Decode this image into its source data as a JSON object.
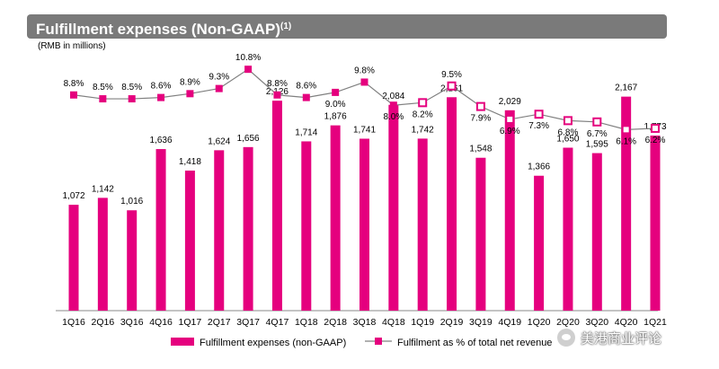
{
  "header": {
    "title": "Fulfillment expenses (Non-GAAP)",
    "title_sup": "(1)",
    "units": "(RMB in millions)"
  },
  "watermark": {
    "text": "美港商业评论",
    "icon": "wechat-icon"
  },
  "colors": {
    "bar": "#e5007e",
    "line": "#808080",
    "marker": "#e5007e",
    "title_bg": "#7a7a7a"
  },
  "chart_data": {
    "type": "bar",
    "categories": [
      "1Q16",
      "2Q16",
      "3Q16",
      "4Q16",
      "1Q17",
      "2Q17",
      "3Q17",
      "4Q17",
      "1Q18",
      "2Q18",
      "3Q18",
      "4Q18",
      "1Q19",
      "2Q19",
      "3Q19",
      "4Q19",
      "1Q20",
      "2Q20",
      "3Q20",
      "4Q20",
      "1Q21"
    ],
    "series": [
      {
        "name": "Fulfillment expenses (non-GAAP)",
        "kind": "bar",
        "values": [
          1072,
          1142,
          1016,
          1636,
          1418,
          1624,
          1656,
          2126,
          1714,
          1876,
          1741,
          2084,
          1742,
          2161,
          1548,
          2029,
          1366,
          1650,
          1595,
          2167,
          1773
        ],
        "labels": [
          "1,072",
          "1,142",
          "1,016",
          "1,636",
          "1,418",
          "1,624",
          "1,656",
          "2,126",
          "1,714",
          "1,876",
          "1,741",
          "2,084",
          "1,742",
          "2,161",
          "1,548",
          "2,029",
          "1,366",
          "1,650",
          "1,595",
          "2,167",
          "1,773"
        ]
      },
      {
        "name": "Fulfilment as % of total net revenue",
        "kind": "line",
        "values": [
          8.8,
          8.5,
          8.5,
          8.6,
          8.9,
          9.3,
          10.8,
          8.8,
          8.6,
          9.0,
          9.8,
          8.0,
          8.2,
          9.5,
          7.9,
          6.9,
          7.3,
          6.8,
          6.7,
          6.1,
          6.2
        ],
        "labels": [
          "8.8%",
          "8.5%",
          "8.5%",
          "8.6%",
          "8.9%",
          "9.3%",
          "10.8%",
          "8.8%",
          "8.6%",
          "9.0%",
          "9.8%",
          "8.0%",
          "8.2%",
          "9.5%",
          "7.9%",
          "6.9%",
          "7.3%",
          "6.8%",
          "6.7%",
          "6.1%",
          "6.2%"
        ]
      }
    ],
    "bar_axis_range": [
      0,
      2600
    ],
    "pct_axis_range": [
      -8.0,
      12.0
    ],
    "grid": false,
    "legend": "bottom"
  }
}
